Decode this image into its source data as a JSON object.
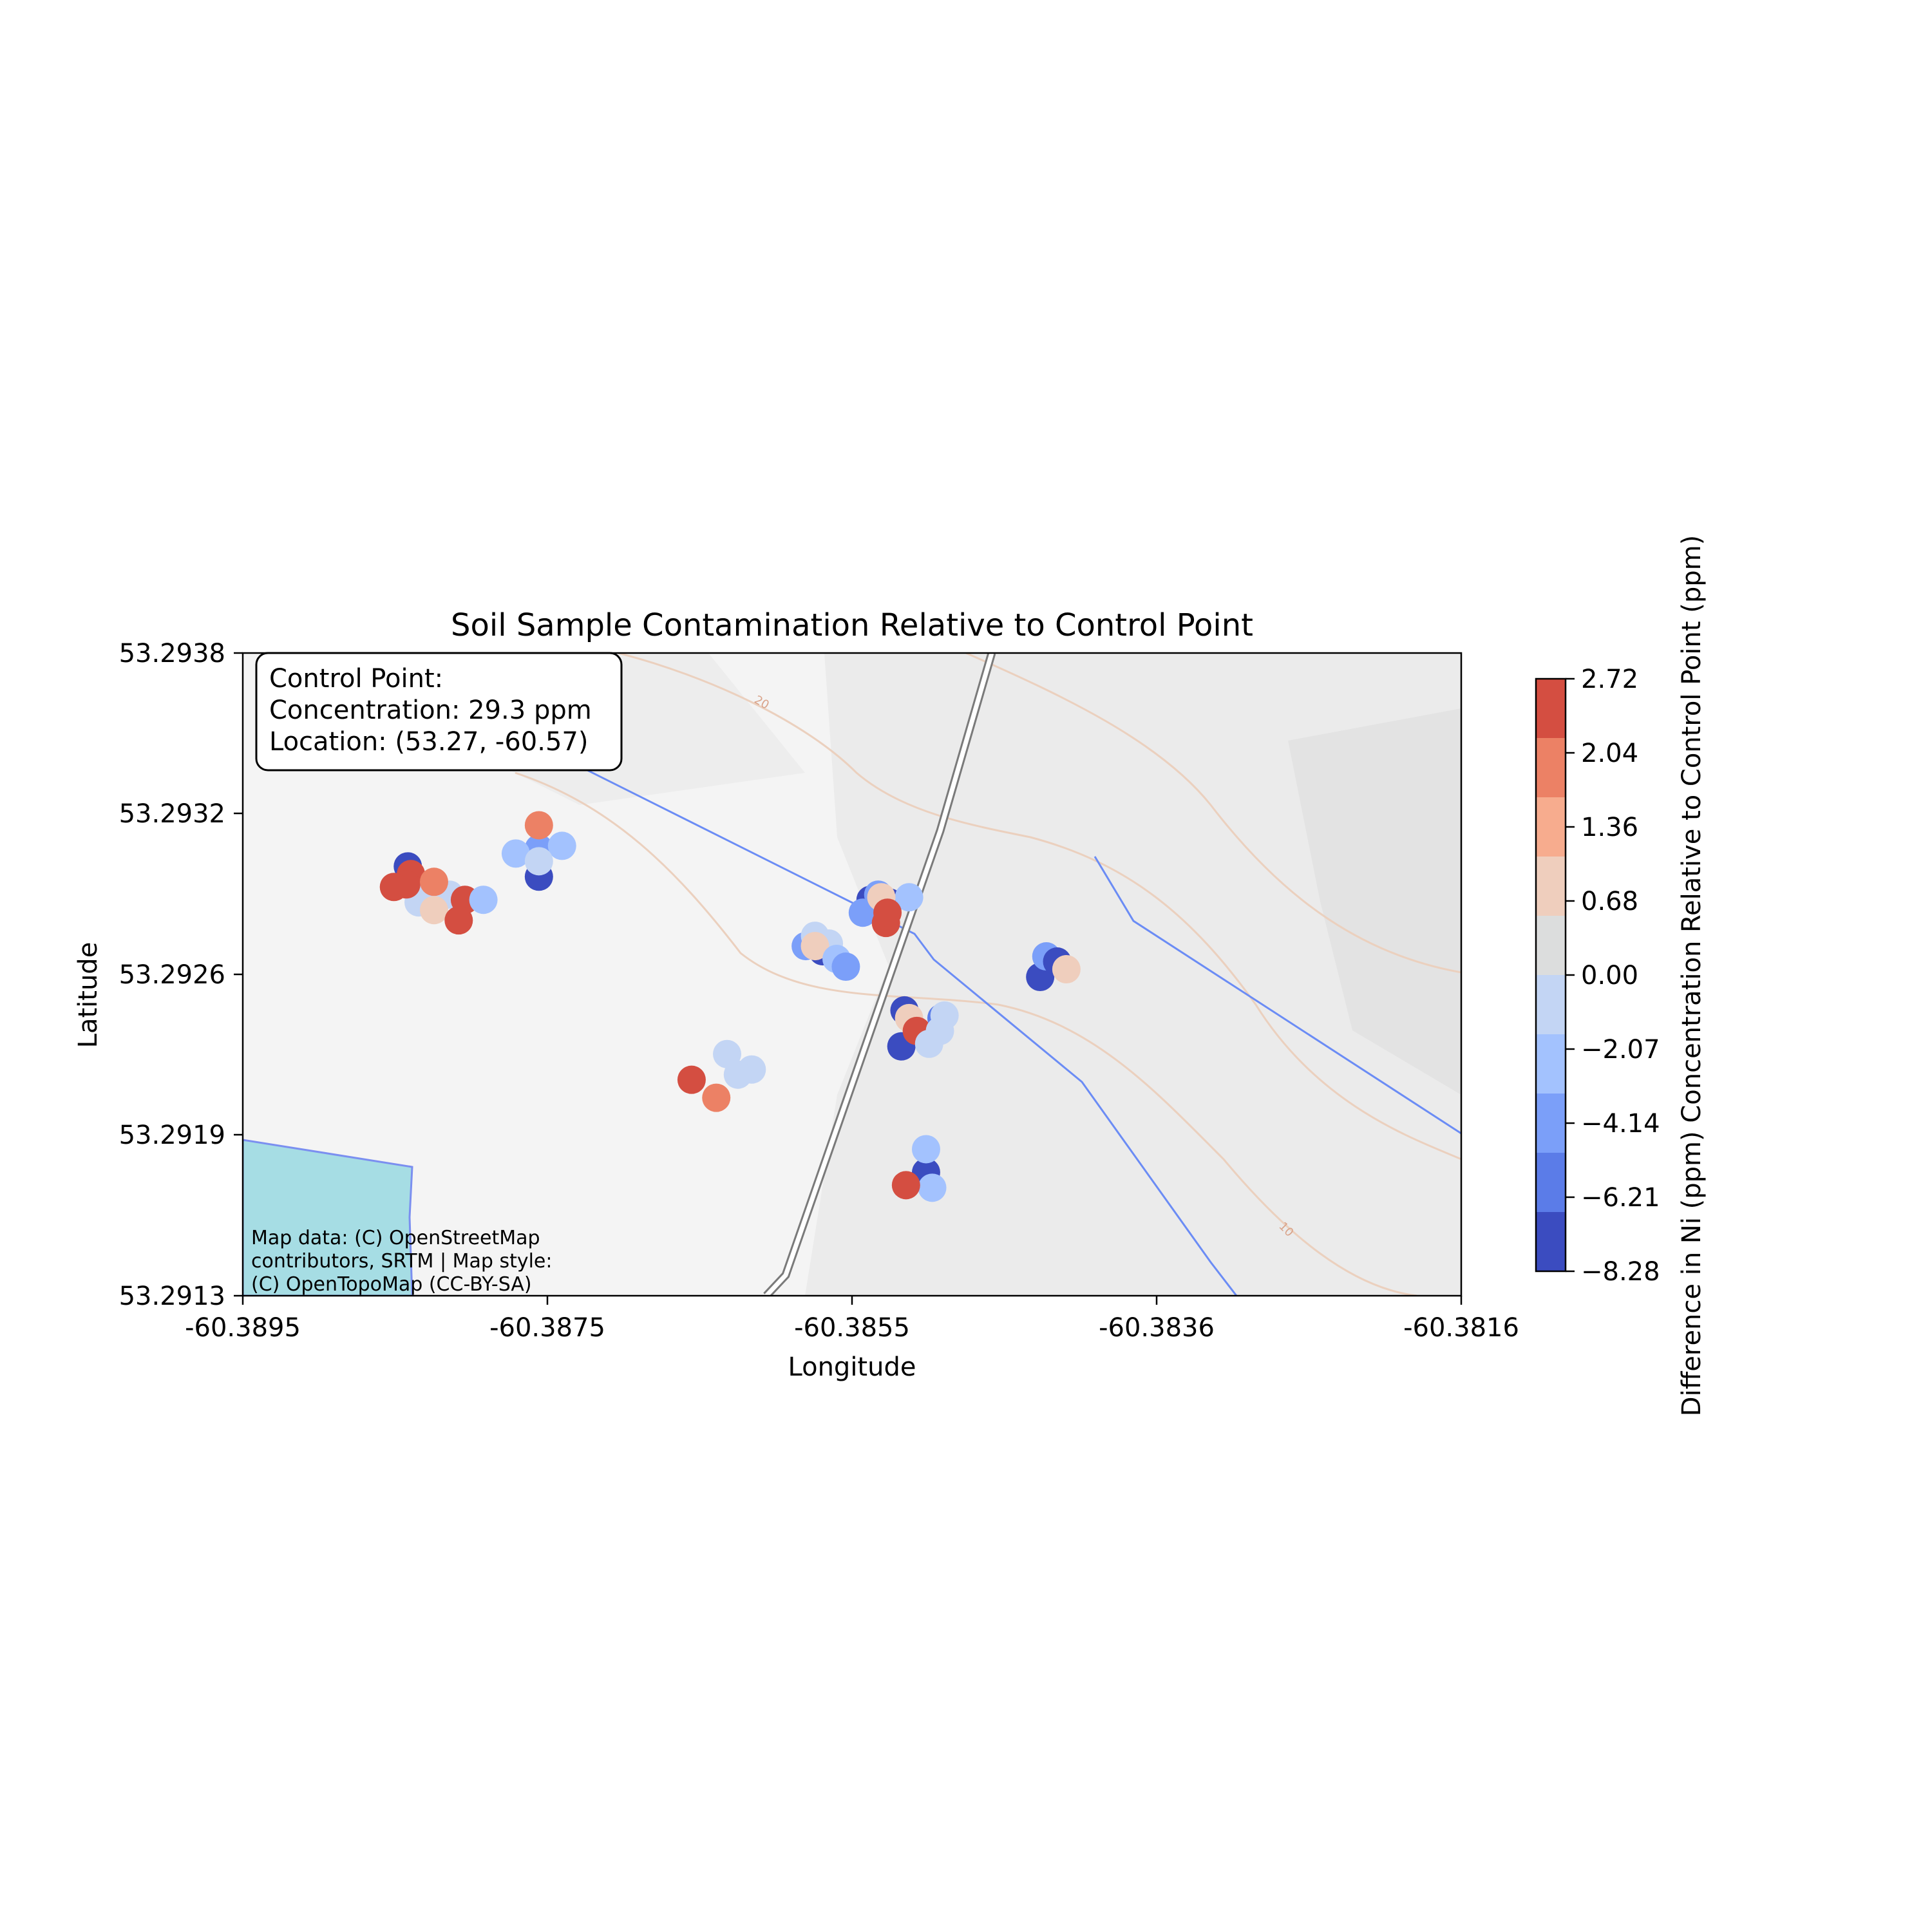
{
  "chart_data": {
    "type": "scatter",
    "title": "Soil Sample Contamination Relative to Control Point",
    "xlabel": "Longitude",
    "ylabel": "Latitude",
    "xlim": [
      -60.3895,
      -60.3816
    ],
    "ylim": [
      53.2913,
      53.2938
    ],
    "xticks": [
      "-60.3895",
      "-60.3875",
      "-60.3855",
      "-60.3836",
      "-60.3816"
    ],
    "yticks": [
      "53.2938",
      "53.2932",
      "53.2926",
      "53.2919",
      "53.2913"
    ],
    "grid": false,
    "control_point": {
      "heading": "Control Point:",
      "concentration": "Concentration: 29.3 ppm",
      "location": "Location: (53.27, -60.57)"
    },
    "attribution": [
      "Map data: (C) OpenStreetMap",
      "contributors, SRTM | Map style:",
      "(C) OpenTopoMap (CC-BY-SA)"
    ],
    "contour_labels": [
      "20",
      "10"
    ],
    "colorbar": {
      "label": "Difference in Ni (ppm) Concentration Relative to Control Point (ppm)",
      "ticks": [
        "2.72",
        "2.04",
        "1.36",
        "0.68",
        "0.00",
        "−2.07",
        "−4.14",
        "−6.21",
        "−8.28"
      ],
      "colors": [
        "#d44e41",
        "#ec8165",
        "#f7ac8e",
        "#efcebd",
        "#dcdddd",
        "#c3d5f4",
        "#a3c2fe",
        "#7b9ff9",
        "#5b7ce8",
        "#3b4cc0"
      ],
      "min": -8.28,
      "max": 2.72
    },
    "points": [
      {
        "x": -60.38843,
        "y": 53.29297,
        "v": -7.8
      },
      {
        "x": -60.38828,
        "y": 53.29289,
        "v": -1.5
      },
      {
        "x": -60.38816,
        "y": 53.29286,
        "v": -2.5
      },
      {
        "x": -60.38836,
        "y": 53.29283,
        "v": -1.5
      },
      {
        "x": -60.38841,
        "y": 53.29294,
        "v": 2.4
      },
      {
        "x": -60.38844,
        "y": 53.2929,
        "v": 2.6
      },
      {
        "x": -60.38852,
        "y": 53.29289,
        "v": 2.6
      },
      {
        "x": -60.38826,
        "y": 53.29291,
        "v": 1.9
      },
      {
        "x": -60.38826,
        "y": 53.2928,
        "v": 0.5
      },
      {
        "x": -60.38806,
        "y": 53.29284,
        "v": 2.6
      },
      {
        "x": -60.3881,
        "y": 53.29276,
        "v": 2.6
      },
      {
        "x": -60.38794,
        "y": 53.29284,
        "v": -3.0
      },
      {
        "x": -60.38758,
        "y": 53.29293,
        "v": -7.8
      },
      {
        "x": -60.38758,
        "y": 53.29304,
        "v": -5.5
      },
      {
        "x": -60.38773,
        "y": 53.29302,
        "v": -3.1
      },
      {
        "x": -60.38743,
        "y": 53.29305,
        "v": -3.1
      },
      {
        "x": -60.38758,
        "y": 53.29313,
        "v": 1.9
      },
      {
        "x": -60.38758,
        "y": 53.29299,
        "v": -2.3
      },
      {
        "x": -60.38659,
        "y": 53.29214,
        "v": 2.6
      },
      {
        "x": -60.38643,
        "y": 53.29207,
        "v": 1.9
      },
      {
        "x": -60.38636,
        "y": 53.29224,
        "v": -1.5
      },
      {
        "x": -60.3862,
        "y": 53.29218,
        "v": -2.3
      },
      {
        "x": -60.38629,
        "y": 53.29216,
        "v": -1.5
      },
      {
        "x": -60.38585,
        "y": 53.29266,
        "v": -5.5
      },
      {
        "x": -60.38579,
        "y": 53.2927,
        "v": -2.3
      },
      {
        "x": -60.38574,
        "y": 53.29264,
        "v": -7.8
      },
      {
        "x": -60.3857,
        "y": 53.29267,
        "v": -1.5
      },
      {
        "x": -60.38579,
        "y": 53.29266,
        "v": 0.6
      },
      {
        "x": -60.38565,
        "y": 53.29261,
        "v": -3.1
      },
      {
        "x": -60.38559,
        "y": 53.29258,
        "v": -5.5
      },
      {
        "x": -60.38543,
        "y": 53.29284,
        "v": -7.8
      },
      {
        "x": -60.38538,
        "y": 53.29286,
        "v": -5.5
      },
      {
        "x": -60.38548,
        "y": 53.29279,
        "v": -5.3
      },
      {
        "x": -60.38531,
        "y": 53.29283,
        "v": -7.8
      },
      {
        "x": -60.38518,
        "y": 53.29285,
        "v": -3.1
      },
      {
        "x": -60.38536,
        "y": 53.29285,
        "v": 0.6
      },
      {
        "x": -60.38533,
        "y": 53.29275,
        "v": 2.6
      },
      {
        "x": -60.38532,
        "y": 53.29279,
        "v": 2.6
      },
      {
        "x": -60.38521,
        "y": 53.29241,
        "v": -7.8
      },
      {
        "x": -60.38518,
        "y": 53.29238,
        "v": 0.6
      },
      {
        "x": -60.38523,
        "y": 53.29227,
        "v": -7.8
      },
      {
        "x": -60.38513,
        "y": 53.29233,
        "v": 2.6
      },
      {
        "x": -60.38505,
        "y": 53.29228,
        "v": -1.5
      },
      {
        "x": -60.38497,
        "y": 53.29238,
        "v": -6.0
      },
      {
        "x": -60.38498,
        "y": 53.29233,
        "v": -2.3
      },
      {
        "x": -60.38495,
        "y": 53.29239,
        "v": -1.5
      },
      {
        "x": -60.38507,
        "y": 53.29178,
        "v": -7.0
      },
      {
        "x": -60.38507,
        "y": 53.29187,
        "v": -3.1
      },
      {
        "x": -60.38503,
        "y": 53.29172,
        "v": -3.1
      },
      {
        "x": -60.3852,
        "y": 53.29173,
        "v": 2.6
      },
      {
        "x": -60.38433,
        "y": 53.29254,
        "v": -7.8
      },
      {
        "x": -60.38429,
        "y": 53.29262,
        "v": -5.5
      },
      {
        "x": -60.38422,
        "y": 53.2926,
        "v": -7.8
      },
      {
        "x": -60.38416,
        "y": 53.29257,
        "v": 0.6
      }
    ]
  }
}
